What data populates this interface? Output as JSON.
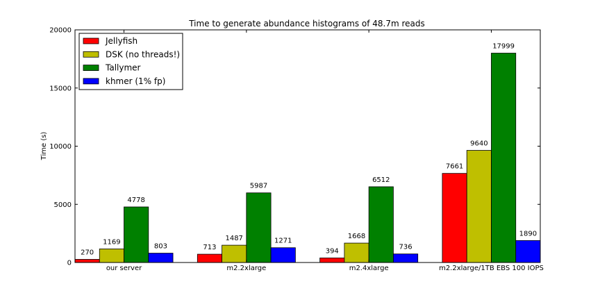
{
  "chart_data": {
    "type": "bar",
    "title": "Time to generate abundance histograms of 48.7m reads",
    "xlabel": "",
    "ylabel": "Time (s)",
    "ylim": [
      0,
      20000
    ],
    "yticks": [
      0,
      5000,
      10000,
      15000,
      20000
    ],
    "categories": [
      "our server",
      "m2.2xlarge",
      "m2.4xlarge",
      "m2.2xlarge/1TB EBS 100 IOPS"
    ],
    "series": [
      {
        "name": "Jellyfish",
        "color": "#ff0000",
        "values": [
          270,
          713,
          394,
          7661
        ]
      },
      {
        "name": "DSK (no threads!)",
        "color": "#bfbf00",
        "values": [
          1169,
          1487,
          1668,
          9640
        ]
      },
      {
        "name": "Tallymer",
        "color": "#008000",
        "values": [
          4778,
          5987,
          6512,
          17999
        ]
      },
      {
        "name": "khmer (1% fp)",
        "color": "#0000ff",
        "values": [
          803,
          1271,
          736,
          1890
        ]
      }
    ],
    "legend_position": "top-left",
    "grid": false
  }
}
